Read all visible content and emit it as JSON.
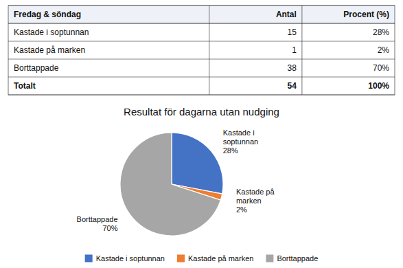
{
  "chart_data": [
    {
      "type": "table",
      "columns": [
        "Fredag & söndag",
        "Antal",
        "Procent (%)"
      ],
      "rows": [
        [
          "Kastade i soptunnan",
          "15",
          "28%"
        ],
        [
          "Kastade på marken",
          "1",
          "2%"
        ],
        [
          "Borttappade",
          "38",
          "70%"
        ],
        [
          "Totalt",
          "54",
          "100%"
        ]
      ]
    },
    {
      "type": "pie",
      "title": "Resultat för dagarna utan nudging",
      "categories": [
        "Kastade i soptunnan",
        "Kastade på marken",
        "Borttappade"
      ],
      "values": [
        28,
        2,
        70
      ],
      "value_labels": [
        "28%",
        "2%",
        "70%"
      ],
      "colors": [
        "#4472C4",
        "#ED7D31",
        "#A6A6A6"
      ],
      "legend": "bottom"
    }
  ]
}
